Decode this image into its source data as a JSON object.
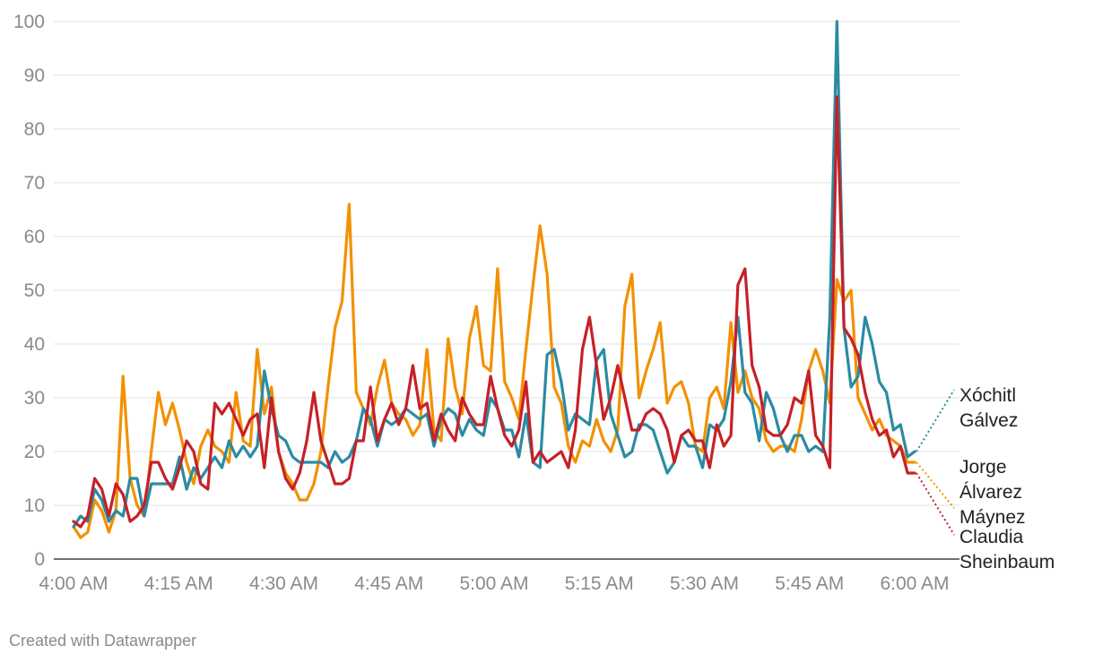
{
  "footer": {
    "credit": "Created with Datawrapper"
  },
  "chart_data": {
    "type": "line",
    "ylim": [
      0,
      100
    ],
    "yticks": [
      0,
      10,
      20,
      30,
      40,
      50,
      60,
      70,
      80,
      90,
      100
    ],
    "xrange": [
      0,
      120
    ],
    "xticks": [
      {
        "t": 0,
        "label": "4:00 AM"
      },
      {
        "t": 15,
        "label": "4:15 AM"
      },
      {
        "t": 30,
        "label": "4:30 AM"
      },
      {
        "t": 45,
        "label": "4:45 AM"
      },
      {
        "t": 60,
        "label": "5:00 AM"
      },
      {
        "t": 75,
        "label": "5:15 AM"
      },
      {
        "t": 90,
        "label": "5:30 AM"
      },
      {
        "t": 105,
        "label": "5:45 AM"
      },
      {
        "t": 120,
        "label": "6:00 AM"
      }
    ],
    "grid": true,
    "series": [
      {
        "name": "Xóchitl Gálvez",
        "label_lines": [
          "Xóchitl",
          "Gálvez"
        ],
        "color": "#2a8ba3",
        "values": [
          6,
          8,
          7,
          13,
          11,
          7,
          9,
          8,
          15,
          15,
          8,
          14,
          14,
          14,
          14,
          19,
          13,
          17,
          15,
          17,
          19,
          17,
          22,
          19,
          21,
          19,
          21,
          35,
          28,
          23,
          22,
          19,
          18,
          18,
          18,
          18,
          17,
          20,
          18,
          19,
          22,
          28,
          26,
          21,
          26,
          25,
          26,
          28,
          27,
          26,
          27,
          21,
          26,
          28,
          27,
          23,
          26,
          24,
          23,
          30,
          28,
          24,
          24,
          19,
          27,
          18,
          17,
          38,
          39,
          33,
          24,
          27,
          26,
          25,
          37,
          39,
          27,
          23,
          19,
          20,
          25,
          25,
          24,
          20,
          16,
          18,
          23,
          21,
          21,
          17,
          25,
          24,
          26,
          33,
          45,
          31,
          29,
          22,
          31,
          28,
          23,
          20,
          23,
          23,
          20,
          21,
          20,
          45,
          100,
          43,
          32,
          34,
          45,
          40,
          33,
          31,
          24,
          25,
          19,
          20
        ]
      },
      {
        "name": "Jorge Álvarez Máynez",
        "label_lines": [
          "Jorge",
          "Álvarez",
          "Máynez"
        ],
        "color": "#f29100",
        "values": [
          6,
          4,
          5,
          11,
          9,
          5,
          9,
          34,
          15,
          10,
          8,
          20,
          31,
          25,
          29,
          24,
          18,
          14,
          21,
          24,
          21,
          20,
          18,
          31,
          22,
          21,
          39,
          27,
          32,
          20,
          16,
          14,
          11,
          11,
          14,
          20,
          32,
          43,
          48,
          66,
          31,
          28,
          25,
          32,
          37,
          29,
          27,
          26,
          23,
          25,
          39,
          24,
          22,
          41,
          32,
          27,
          41,
          47,
          36,
          35,
          54,
          33,
          30,
          26,
          39,
          51,
          62,
          53,
          32,
          29,
          21,
          18,
          22,
          21,
          26,
          22,
          20,
          24,
          47,
          53,
          30,
          35,
          39,
          44,
          29,
          32,
          33,
          29,
          21,
          20,
          30,
          32,
          28,
          44,
          31,
          35,
          30,
          28,
          22,
          20,
          21,
          21,
          20,
          26,
          35,
          39,
          35,
          29,
          52,
          48,
          50,
          30,
          27,
          24,
          26,
          23,
          22,
          21,
          18,
          18
        ]
      },
      {
        "name": "Claudia Sheinbaum",
        "label_lines": [
          "Claudia",
          "Sheinbaum"
        ],
        "color": "#c62028",
        "values": [
          7,
          6,
          8,
          15,
          13,
          8,
          14,
          12,
          7,
          8,
          10,
          18,
          18,
          15,
          13,
          17,
          22,
          20,
          14,
          13,
          29,
          27,
          29,
          26,
          23,
          26,
          27,
          17,
          30,
          20,
          15,
          13,
          16,
          22,
          31,
          22,
          18,
          14,
          14,
          15,
          22,
          22,
          32,
          22,
          26,
          29,
          25,
          28,
          36,
          28,
          29,
          22,
          27,
          24,
          22,
          30,
          27,
          25,
          25,
          34,
          28,
          23,
          21,
          24,
          33,
          18,
          20,
          18,
          19,
          20,
          17,
          24,
          39,
          45,
          36,
          26,
          30,
          36,
          30,
          24,
          24,
          27,
          28,
          27,
          24,
          18,
          23,
          24,
          22,
          22,
          17,
          25,
          21,
          23,
          51,
          54,
          36,
          32,
          24,
          23,
          23,
          25,
          30,
          29,
          35,
          23,
          21,
          17,
          86,
          43,
          41,
          38,
          31,
          26,
          23,
          24,
          19,
          21,
          16,
          16
        ]
      }
    ],
    "end_labels": [
      {
        "series": 0,
        "lines": [
          "Xóchitl",
          "Gálvez"
        ],
        "anchor_value": 31.5
      },
      {
        "series": 1,
        "lines": [
          "Jorge",
          "Álvarez",
          "Máynez"
        ],
        "anchor_value": 9.5
      },
      {
        "series": 2,
        "lines": [
          "Claudia",
          "Sheinbaum"
        ],
        "anchor_value": 4.5
      }
    ]
  }
}
